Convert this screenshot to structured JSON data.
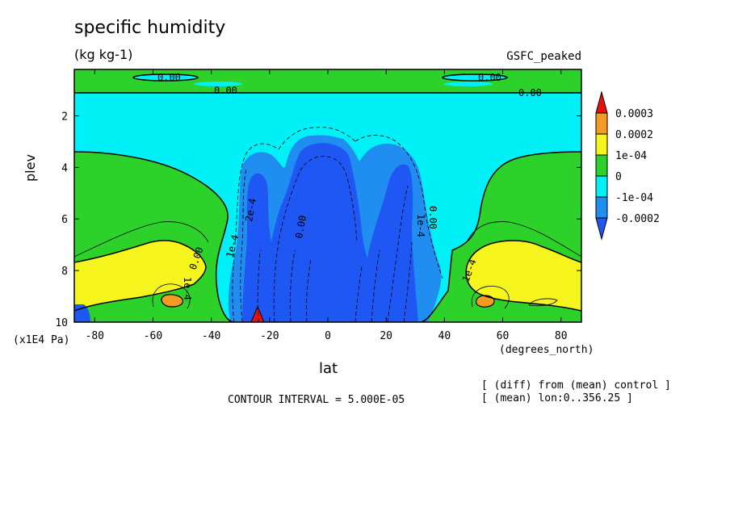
{
  "header": {
    "title": "specific humidity",
    "units": "(kg kg-1)",
    "model_label": "GSFC_peaked"
  },
  "footer": {
    "contour_interval": "CONTOUR INTERVAL = 5.000E-05",
    "note_diff": "[ (diff) from (mean) control ]",
    "note_mean": "[ (mean) lon:0..356.25 ]"
  },
  "chart_data": {
    "type": "contour",
    "title": "specific humidity",
    "units": "(kg kg-1)",
    "xlabel": "lat",
    "xunit": "(degrees_north)",
    "ylabel": "plev",
    "yunit": "(x1E4 Pa)",
    "xlim": [
      -87,
      87
    ],
    "ylim": [
      10,
      0.2
    ],
    "y_reversed": true,
    "xticks": [
      -80,
      -60,
      -40,
      -20,
      0,
      20,
      40,
      60,
      80
    ],
    "yticks": [
      2,
      4,
      6,
      8,
      10
    ],
    "contour_interval": 5e-05,
    "colorbar": {
      "labels": [
        "0.0003",
        "0.0002",
        "1e-04",
        "0",
        "-1e-04",
        "-0.0002"
      ],
      "colors": [
        "#e8110f",
        "#f59a22",
        "#f5f51d",
        "#2cd22a",
        "#00f0f8",
        "#1f8ef0",
        "#1f57f5"
      ]
    },
    "contour_labels": [
      {
        "text": "0.00",
        "lat": -55,
        "plev": 0.6
      },
      {
        "text": "0.00",
        "lat": -40,
        "plev": 1.1
      },
      {
        "text": "0.00",
        "lat": 55,
        "plev": 0.6
      },
      {
        "text": "0.00",
        "lat": 70,
        "plev": 1.1
      },
      {
        "text": "1e-4",
        "lat": -48,
        "plev": 8.5
      },
      {
        "text": "0.00",
        "lat": -42,
        "plev": 7.8
      },
      {
        "text": "1e-4",
        "lat": -33,
        "plev": 7.2
      },
      {
        "text": "2e-4",
        "lat": -25,
        "plev": 5.6
      },
      {
        "text": "1e-4",
        "lat": -24,
        "plev": 7.2
      },
      {
        "text": "0.00",
        "lat": -4,
        "plev": 7.0
      },
      {
        "text": "1e-4",
        "lat": 36,
        "plev": 6.0
      },
      {
        "text": "0.00",
        "lat": 42,
        "plev": 6.0
      },
      {
        "text": "1e-4",
        "lat": 51,
        "plev": 8.5
      }
    ]
  }
}
